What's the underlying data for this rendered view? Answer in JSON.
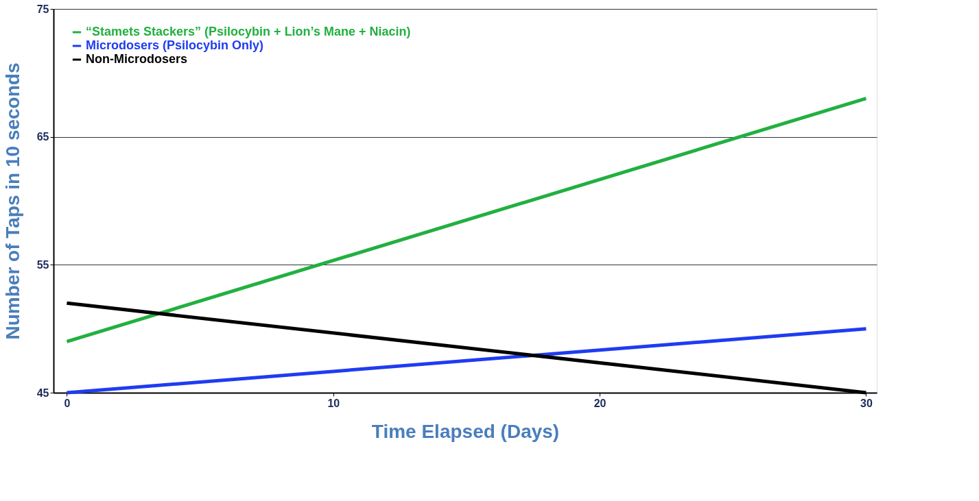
{
  "chart_data": {
    "type": "line",
    "xlabel": "Time Elapsed (Days)",
    "ylabel": "Number of Taps in 10 seconds",
    "x": [
      0,
      30
    ],
    "series": [
      {
        "name": "“Stamets Stackers” (Psilocybin + Lion’s Mane + Niacin)",
        "color": "#22b040",
        "values": [
          49,
          68
        ]
      },
      {
        "name": "Microdosers (Psilocybin Only)",
        "color": "#1f3cf0",
        "values": [
          45,
          50
        ]
      },
      {
        "name": "Non-Microdosers",
        "color": "#000000",
        "values": [
          52,
          45
        ]
      }
    ],
    "xlim": [
      -0.5,
      30.4
    ],
    "xticks": [
      0,
      10,
      20,
      30
    ],
    "ylim": [
      45,
      75
    ],
    "yticks": [
      45,
      55,
      65,
      75
    ],
    "grid": "y",
    "legend": "top left",
    "marker": "none",
    "line_style": "solid"
  }
}
